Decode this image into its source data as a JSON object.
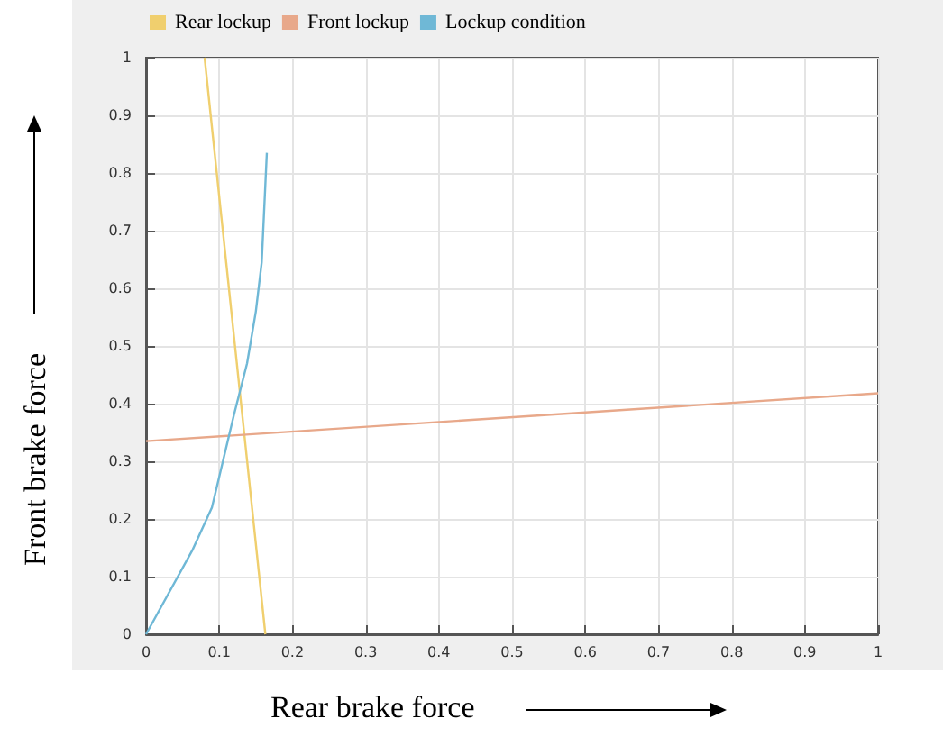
{
  "chart_data": {
    "type": "line",
    "xlabel": "Rear brake force",
    "ylabel": "Front brake force",
    "xlim": [
      0,
      1
    ],
    "ylim": [
      0,
      1
    ],
    "xticks": [
      0,
      0.1,
      0.2,
      0.3,
      0.4,
      0.5,
      0.6,
      0.7,
      0.8,
      0.9,
      1
    ],
    "yticks": [
      0,
      0.1,
      0.2,
      0.3,
      0.4,
      0.5,
      0.6,
      0.7,
      0.8,
      0.9,
      1
    ],
    "grid": true,
    "legend": "top left",
    "marker": "none",
    "line_style": "solid",
    "series": [
      {
        "name": "Rear lockup",
        "color": "#f0cf6e",
        "x": [
          0.08,
          0.163
        ],
        "values": [
          1,
          0
        ]
      },
      {
        "name": "Front lockup",
        "color": "#e8a88a",
        "x": [
          0,
          1
        ],
        "values": [
          0.335,
          0.418
        ]
      },
      {
        "name": "Lockup condition",
        "color": "#6fb8d6",
        "x": [
          0,
          0.063,
          0.09,
          0.105,
          0.12,
          0.138,
          0.15,
          0.158,
          0.165
        ],
        "values": [
          0,
          0.145,
          0.22,
          0.3,
          0.38,
          0.47,
          0.56,
          0.645,
          0.835
        ]
      }
    ]
  }
}
